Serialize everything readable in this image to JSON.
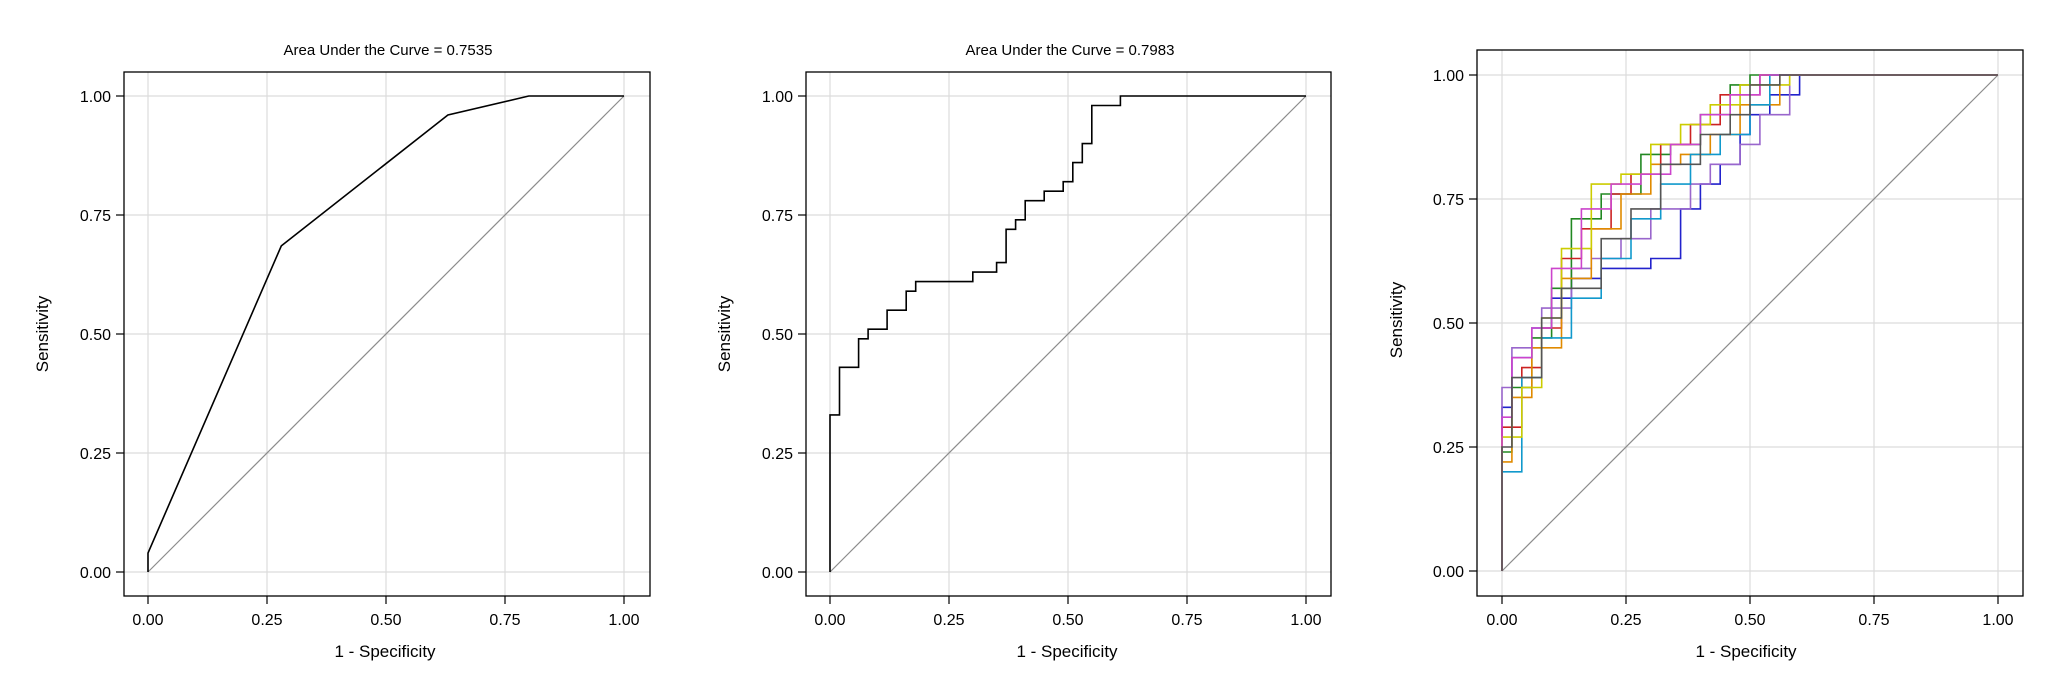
{
  "chart_data": [
    {
      "type": "line",
      "title": "Area Under the Curve = 0.7535",
      "xlabel": "1 - Specificity",
      "ylabel": "Sensitivity",
      "xlim": [
        0,
        1
      ],
      "ylim": [
        0,
        1
      ],
      "xticks": [
        "0.00",
        "0.25",
        "0.50",
        "0.75",
        "1.00"
      ],
      "yticks": [
        "0.00",
        "0.25",
        "0.50",
        "0.75",
        "1.00"
      ],
      "grid": true,
      "reference_line": true,
      "colors": {
        "reference": "#8c8c8c"
      },
      "series": [
        {
          "color": "#000000",
          "x": [
            0,
            0,
            0.28,
            0.63,
            0.8,
            1.0
          ],
          "y": [
            0,
            0.04,
            0.685,
            0.96,
            1.0,
            1.0
          ]
        }
      ]
    },
    {
      "type": "line",
      "title": "Area Under the Curve = 0.7983",
      "xlabel": "1 - Specificity",
      "ylabel": "Sensitivity",
      "xlim": [
        0,
        1
      ],
      "ylim": [
        0,
        1
      ],
      "xticks": [
        "0.00",
        "0.25",
        "0.50",
        "0.75",
        "1.00"
      ],
      "yticks": [
        "0.00",
        "0.25",
        "0.50",
        "0.75",
        "1.00"
      ],
      "grid": true,
      "reference_line": true,
      "colors": {
        "reference": "#8c8c8c"
      },
      "series": [
        {
          "color": "#000000",
          "x": [
            0,
            0,
            0.02,
            0.02,
            0.06,
            0.06,
            0.08,
            0.08,
            0.12,
            0.12,
            0.16,
            0.16,
            0.18,
            0.18,
            0.3,
            0.3,
            0.35,
            0.35,
            0.37,
            0.37,
            0.39,
            0.39,
            0.41,
            0.41,
            0.45,
            0.45,
            0.49,
            0.49,
            0.51,
            0.51,
            0.53,
            0.53,
            0.55,
            0.55,
            0.61,
            0.61,
            1.0
          ],
          "y": [
            0,
            0.33,
            0.33,
            0.43,
            0.43,
            0.49,
            0.49,
            0.51,
            0.51,
            0.55,
            0.55,
            0.59,
            0.59,
            0.61,
            0.61,
            0.63,
            0.63,
            0.65,
            0.65,
            0.72,
            0.72,
            0.74,
            0.74,
            0.78,
            0.78,
            0.8,
            0.8,
            0.82,
            0.82,
            0.86,
            0.86,
            0.9,
            0.9,
            0.98,
            0.98,
            1.0,
            1.0
          ]
        }
      ]
    },
    {
      "type": "line",
      "title": "",
      "xlabel": "1 - Specificity",
      "ylabel": "Sensitivity",
      "xlim": [
        0,
        1
      ],
      "ylim": [
        0,
        1
      ],
      "xticks": [
        "0.00",
        "0.25",
        "0.50",
        "0.75",
        "1.00"
      ],
      "yticks": [
        "0.00",
        "0.25",
        "0.50",
        "0.75",
        "1.00"
      ],
      "grid": true,
      "reference_line": true,
      "colors": {
        "reference": "#8c8c8c"
      },
      "series": [
        {
          "color": "#2222cc",
          "x": [
            0,
            0,
            0.02,
            0.02,
            0.06,
            0.06,
            0.1,
            0.1,
            0.14,
            0.14,
            0.2,
            0.2,
            0.3,
            0.3,
            0.36,
            0.36,
            0.4,
            0.4,
            0.44,
            0.44,
            0.48,
            0.48,
            0.5,
            0.5,
            0.54,
            0.54,
            0.6,
            0.6,
            1.0
          ],
          "y": [
            0,
            0.33,
            0.33,
            0.43,
            0.43,
            0.49,
            0.49,
            0.55,
            0.55,
            0.59,
            0.59,
            0.61,
            0.61,
            0.63,
            0.63,
            0.73,
            0.73,
            0.78,
            0.78,
            0.82,
            0.82,
            0.88,
            0.88,
            0.92,
            0.92,
            0.96,
            0.96,
            1.0,
            1.0
          ]
        },
        {
          "color": "#9966cc",
          "x": [
            0,
            0,
            0.02,
            0.02,
            0.08,
            0.08,
            0.14,
            0.14,
            0.18,
            0.18,
            0.24,
            0.24,
            0.3,
            0.3,
            0.38,
            0.38,
            0.42,
            0.42,
            0.48,
            0.48,
            0.52,
            0.52,
            0.58,
            0.58,
            1.0
          ],
          "y": [
            0,
            0.37,
            0.37,
            0.45,
            0.45,
            0.53,
            0.53,
            0.61,
            0.61,
            0.63,
            0.63,
            0.67,
            0.67,
            0.73,
            0.73,
            0.78,
            0.78,
            0.82,
            0.82,
            0.86,
            0.86,
            0.92,
            0.92,
            1.0,
            1.0
          ]
        },
        {
          "color": "#228822",
          "x": [
            0,
            0,
            0.02,
            0.02,
            0.06,
            0.06,
            0.1,
            0.1,
            0.14,
            0.14,
            0.2,
            0.2,
            0.28,
            0.28,
            0.34,
            0.34,
            0.4,
            0.4,
            0.46,
            0.46,
            0.5,
            0.5,
            1.0
          ],
          "y": [
            0,
            0.24,
            0.24,
            0.37,
            0.37,
            0.47,
            0.47,
            0.57,
            0.57,
            0.71,
            0.71,
            0.76,
            0.76,
            0.84,
            0.84,
            0.86,
            0.86,
            0.92,
            0.92,
            0.98,
            0.98,
            1.0,
            1.0
          ]
        },
        {
          "color": "#cc2222",
          "x": [
            0,
            0,
            0.04,
            0.04,
            0.08,
            0.08,
            0.12,
            0.12,
            0.16,
            0.16,
            0.22,
            0.22,
            0.26,
            0.26,
            0.32,
            0.32,
            0.38,
            0.38,
            0.44,
            0.44,
            0.52,
            0.52,
            1.0
          ],
          "y": [
            0,
            0.29,
            0.29,
            0.41,
            0.41,
            0.49,
            0.49,
            0.63,
            0.63,
            0.69,
            0.69,
            0.76,
            0.76,
            0.8,
            0.8,
            0.86,
            0.86,
            0.9,
            0.9,
            0.96,
            0.96,
            1.0,
            1.0
          ]
        },
        {
          "color": "#e08a00",
          "x": [
            0,
            0,
            0.02,
            0.02,
            0.06,
            0.06,
            0.12,
            0.12,
            0.18,
            0.18,
            0.24,
            0.24,
            0.3,
            0.3,
            0.36,
            0.36,
            0.42,
            0.42,
            0.48,
            0.48,
            0.56,
            0.56,
            1.0
          ],
          "y": [
            0,
            0.22,
            0.22,
            0.35,
            0.35,
            0.45,
            0.45,
            0.59,
            0.59,
            0.69,
            0.69,
            0.76,
            0.76,
            0.82,
            0.82,
            0.84,
            0.84,
            0.88,
            0.88,
            0.94,
            0.94,
            1.0,
            1.0
          ]
        },
        {
          "color": "#1199cc",
          "x": [
            0,
            0,
            0.04,
            0.04,
            0.08,
            0.08,
            0.14,
            0.14,
            0.2,
            0.2,
            0.26,
            0.26,
            0.32,
            0.32,
            0.38,
            0.38,
            0.44,
            0.44,
            0.5,
            0.5,
            0.54,
            0.54,
            1.0
          ],
          "y": [
            0,
            0.2,
            0.2,
            0.39,
            0.39,
            0.47,
            0.47,
            0.55,
            0.55,
            0.63,
            0.63,
            0.71,
            0.71,
            0.78,
            0.78,
            0.84,
            0.84,
            0.88,
            0.88,
            0.94,
            0.94,
            1.0,
            1.0
          ]
        },
        {
          "color": "#cccc00",
          "x": [
            0,
            0,
            0.04,
            0.04,
            0.08,
            0.08,
            0.12,
            0.12,
            0.18,
            0.18,
            0.24,
            0.24,
            0.3,
            0.3,
            0.36,
            0.36,
            0.42,
            0.42,
            0.48,
            0.48,
            0.58,
            0.58,
            1.0
          ],
          "y": [
            0,
            0.27,
            0.27,
            0.37,
            0.37,
            0.51,
            0.51,
            0.65,
            0.65,
            0.78,
            0.78,
            0.8,
            0.8,
            0.86,
            0.86,
            0.9,
            0.9,
            0.94,
            0.94,
            0.98,
            0.98,
            1.0,
            1.0
          ]
        },
        {
          "color": "#cc44cc",
          "x": [
            0,
            0,
            0.02,
            0.02,
            0.06,
            0.06,
            0.1,
            0.1,
            0.16,
            0.16,
            0.22,
            0.22,
            0.28,
            0.28,
            0.34,
            0.34,
            0.4,
            0.4,
            0.46,
            0.46,
            0.52,
            0.52,
            1.0
          ],
          "y": [
            0,
            0.31,
            0.31,
            0.43,
            0.43,
            0.49,
            0.49,
            0.61,
            0.61,
            0.73,
            0.73,
            0.78,
            0.78,
            0.8,
            0.8,
            0.86,
            0.86,
            0.92,
            0.92,
            0.96,
            0.96,
            1.0,
            1.0
          ]
        },
        {
          "color": "#555555",
          "x": [
            0,
            0,
            0.02,
            0.02,
            0.08,
            0.08,
            0.12,
            0.12,
            0.2,
            0.2,
            0.26,
            0.26,
            0.32,
            0.32,
            0.4,
            0.4,
            0.46,
            0.46,
            0.5,
            0.5,
            0.56,
            0.56,
            1.0
          ],
          "y": [
            0,
            0.25,
            0.25,
            0.39,
            0.39,
            0.51,
            0.51,
            0.57,
            0.57,
            0.67,
            0.67,
            0.73,
            0.73,
            0.82,
            0.82,
            0.88,
            0.88,
            0.92,
            0.92,
            0.98,
            0.98,
            1.0,
            1.0
          ]
        }
      ]
    }
  ]
}
